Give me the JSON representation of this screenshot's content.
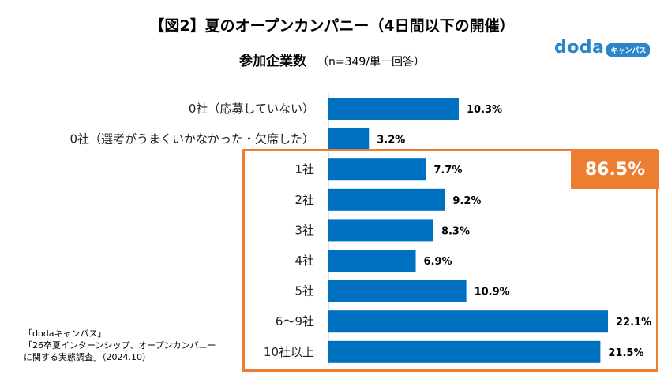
{
  "header": {
    "title": "【図2】夏のオープンカンパニー（4日間以下の開催）",
    "subtitle": "参加企業数",
    "sample_note": "（n=349/単一回答）"
  },
  "logo": {
    "word": "doda",
    "badge": "キャンパス",
    "color": "#2a86c8"
  },
  "highlight": {
    "label": "86.5%",
    "color": "#ed7d31"
  },
  "source_lines": [
    "「dodaキャンパス」",
    "「26卒夏インターンシップ、オープンカンパニー",
    "に関する実態調査」（2024.10）"
  ],
  "chart_data": {
    "type": "bar",
    "orientation": "horizontal",
    "bar_color": "#0070c0",
    "categories": [
      "0社（応募していない）",
      "0社（選考がうまくいかなかった・欠席した）",
      "1社",
      "2社",
      "3社",
      "4社",
      "5社",
      "6〜9社",
      "10社以上"
    ],
    "values": [
      10.3,
      3.2,
      7.7,
      9.2,
      8.3,
      6.9,
      10.9,
      22.1,
      21.5
    ],
    "value_labels": [
      "10.3%",
      "3.2%",
      "7.7%",
      "9.2%",
      "8.3%",
      "6.9%",
      "10.9%",
      "22.1%",
      "21.5%"
    ],
    "xlim": [
      0,
      22.1
    ],
    "grid": false,
    "legend": "none"
  }
}
